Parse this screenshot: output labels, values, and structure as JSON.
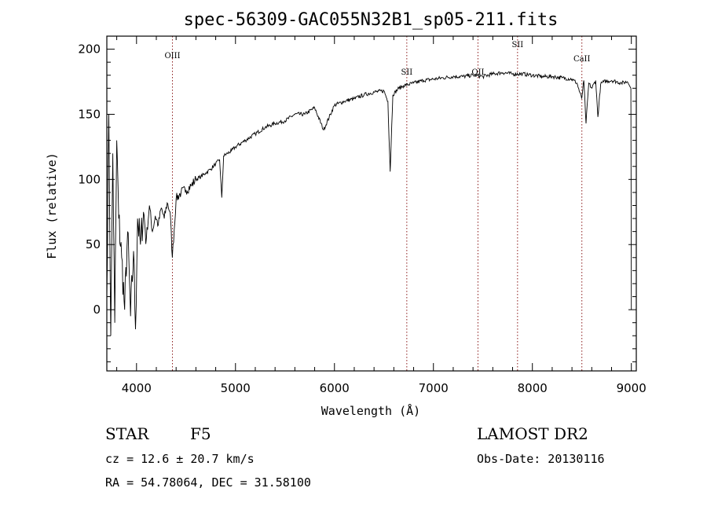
{
  "chart_data": {
    "type": "line",
    "title": "spec-56309-GAC055N32B1_sp05-211.fits",
    "xlabel": "Wavelength (Å)",
    "ylabel": "Flux (relative)",
    "xlim": [
      3700,
      9050
    ],
    "ylim": [
      -47,
      210
    ],
    "xticks": [
      4000,
      5000,
      6000,
      7000,
      8000,
      9000
    ],
    "yticks": [
      0,
      50,
      100,
      150,
      200
    ],
    "xtick_labels": [
      "4000",
      "5000",
      "6000",
      "7000",
      "8000",
      "9000"
    ],
    "ytick_labels": [
      "0",
      "50",
      "100",
      "150",
      "200"
    ],
    "line_markers": [
      {
        "label": "OIII",
        "x": 4363
      },
      {
        "label": "SII",
        "x": 6731
      },
      {
        "label": "OII",
        "x": 7450
      },
      {
        "label": "SII",
        "x": 7850
      },
      {
        "label": "CaII",
        "x": 8500
      }
    ],
    "series": [
      {
        "x": [
          3700,
          3720,
          3740,
          3760,
          3780,
          3800,
          3820,
          3850,
          3880,
          3910,
          3940,
          3970,
          3990,
          4010,
          4040,
          4070,
          4100,
          4130,
          4160,
          4190,
          4220,
          4250,
          4280,
          4310,
          4340,
          4362,
          4400,
          4450,
          4500,
          4550,
          4600,
          4650,
          4700,
          4750,
          4800,
          4840,
          4861,
          4880,
          4920,
          4960,
          5000,
          5100,
          5200,
          5300,
          5400,
          5500,
          5600,
          5700,
          5800,
          5890,
          6000,
          6100,
          6200,
          6300,
          6400,
          6500,
          6540,
          6563,
          6590,
          6650,
          6700,
          6800,
          6900,
          7000,
          7100,
          7200,
          7300,
          7400,
          7500,
          7600,
          7700,
          7800,
          7900,
          8000,
          8100,
          8200,
          8300,
          8400,
          8450,
          8498,
          8520,
          8542,
          8570,
          8600,
          8640,
          8662,
          8690,
          8720,
          8800,
          8900,
          8960,
          8995,
          9000
        ],
        "y": [
          10,
          150,
          -20,
          120,
          -10,
          130,
          70,
          40,
          0,
          60,
          -5,
          45,
          -15,
          70,
          50,
          75,
          55,
          80,
          60,
          72,
          65,
          78,
          70,
          82,
          75,
          40,
          85,
          90,
          92,
          95,
          100,
          102,
          105,
          108,
          112,
          115,
          86,
          118,
          120,
          122,
          125,
          130,
          135,
          140,
          143,
          145,
          150,
          150,
          155,
          138,
          157,
          160,
          162,
          165,
          167,
          168,
          160,
          106,
          165,
          170,
          172,
          174,
          176,
          177,
          178,
          179,
          179,
          180,
          179,
          181,
          182,
          181,
          181,
          180,
          179,
          179,
          178,
          177,
          174,
          162,
          176,
          143,
          174,
          170,
          176,
          148,
          173,
          175,
          176,
          174,
          175,
          170,
          0
        ]
      }
    ]
  },
  "info": {
    "object_class": "STAR",
    "subclass": "F5",
    "survey": "LAMOST DR2",
    "cz": "cz = 12.6 ± 20.7 km/s",
    "obs_date": "Obs-Date: 20130116",
    "coords": "RA =  54.78064, DEC =  31.58100"
  }
}
